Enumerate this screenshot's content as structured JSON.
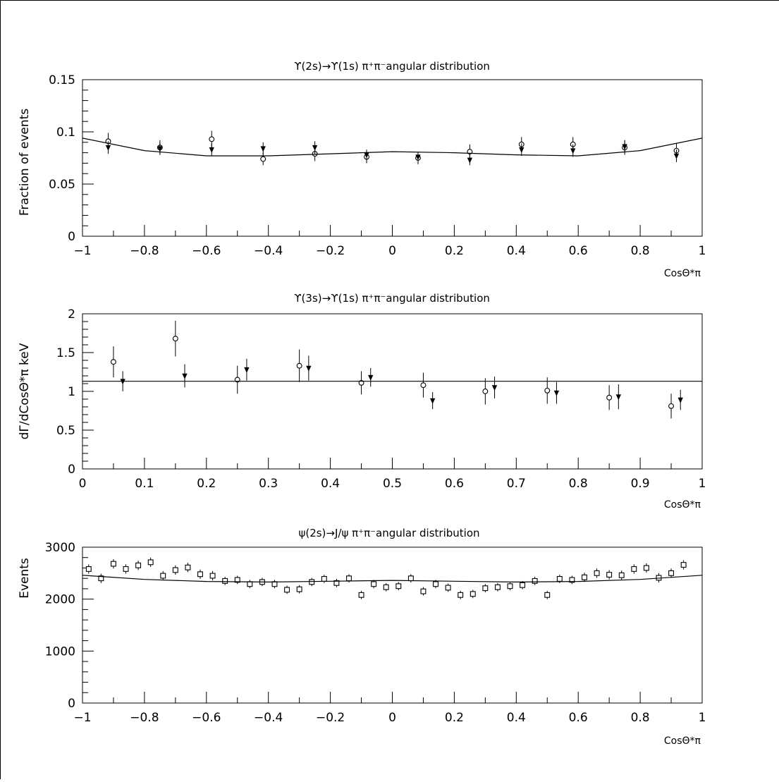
{
  "chart_data": [
    {
      "type": "scatter",
      "title": "ϒ(2s)→ϒ(1s) π⁺π⁻angular distribution",
      "xlabel": "CosΘ*π",
      "ylabel": "Fraction of events",
      "xlim": [
        -1,
        1
      ],
      "ylim": [
        0,
        0.15
      ],
      "xticks": [
        "−1",
        "−0.8",
        "−0.6",
        "−0.4",
        "−0.2",
        "0",
        "0.2",
        "0.4",
        "0.6",
        "0.8",
        "1"
      ],
      "yticks": [
        "0",
        "0.05",
        "0.1",
        "0.15"
      ],
      "grid": false,
      "series": [
        {
          "marker": "open-circle",
          "x": [
            -0.917,
            -0.75,
            -0.583,
            -0.417,
            -0.25,
            -0.083,
            0.083,
            0.25,
            0.417,
            0.583,
            0.75,
            0.917
          ],
          "y": [
            0.091,
            0.085,
            0.093,
            0.074,
            0.079,
            0.076,
            0.075,
            0.081,
            0.088,
            0.088,
            0.085,
            0.082
          ],
          "err": [
            0.008,
            0.007,
            0.008,
            0.006,
            0.007,
            0.006,
            0.006,
            0.007,
            0.007,
            0.007,
            0.007,
            0.007
          ]
        },
        {
          "marker": "filled-triangle",
          "x": [
            -0.917,
            -0.75,
            -0.583,
            -0.417,
            -0.25,
            -0.083,
            0.083,
            0.25,
            0.417,
            0.583,
            0.75,
            0.917
          ],
          "y": [
            0.085,
            0.084,
            0.083,
            0.084,
            0.085,
            0.078,
            0.076,
            0.073,
            0.083,
            0.082,
            0.086,
            0.077
          ],
          "err": [
            0.006,
            0.006,
            0.006,
            0.006,
            0.006,
            0.005,
            0.005,
            0.005,
            0.006,
            0.006,
            0.006,
            0.006
          ]
        },
        {
          "marker": "line",
          "x": [
            -1,
            -0.8,
            -0.6,
            -0.4,
            -0.2,
            0,
            0.2,
            0.4,
            0.6,
            0.8,
            1
          ],
          "y": [
            0.094,
            0.082,
            0.077,
            0.077,
            0.079,
            0.081,
            0.08,
            0.078,
            0.077,
            0.082,
            0.094
          ]
        }
      ]
    },
    {
      "type": "scatter",
      "title": "ϒ(3s)→ϒ(1s) π⁺π⁻angular distribution",
      "xlabel": "CosΘ*π",
      "ylabel": "dΓ/dCosΘ*π  keV",
      "xlim": [
        0,
        1
      ],
      "ylim": [
        0,
        2
      ],
      "xticks": [
        "0",
        "0.1",
        "0.2",
        "0.3",
        "0.4",
        "0.5",
        "0.6",
        "0.7",
        "0.8",
        "0.9",
        "1"
      ],
      "yticks": [
        "0",
        "0.5",
        "1",
        "1.5",
        "2"
      ],
      "grid": false,
      "series": [
        {
          "marker": "open-circle",
          "x": [
            0.05,
            0.15,
            0.25,
            0.35,
            0.45,
            0.55,
            0.65,
            0.75,
            0.85,
            0.95
          ],
          "y": [
            1.38,
            1.68,
            1.15,
            1.33,
            1.11,
            1.08,
            1.0,
            1.01,
            0.92,
            0.81
          ],
          "err": [
            0.2,
            0.23,
            0.18,
            0.21,
            0.15,
            0.16,
            0.17,
            0.17,
            0.16,
            0.16
          ]
        },
        {
          "marker": "filled-triangle",
          "x": [
            0.065,
            0.165,
            0.265,
            0.365,
            0.465,
            0.565,
            0.665,
            0.765,
            0.865,
            0.965
          ],
          "y": [
            1.13,
            1.2,
            1.28,
            1.3,
            1.18,
            0.88,
            1.05,
            0.98,
            0.93,
            0.89
          ],
          "err": [
            0.13,
            0.15,
            0.14,
            0.16,
            0.12,
            0.11,
            0.14,
            0.14,
            0.16,
            0.13
          ]
        },
        {
          "marker": "line",
          "x": [
            0,
            1
          ],
          "y": [
            1.13,
            1.13
          ]
        }
      ]
    },
    {
      "type": "scatter",
      "title": "ψ(2s)→J/ψ π⁺π⁻angular distribution",
      "xlabel": "CosΘ*π",
      "ylabel": "Events",
      "xlim": [
        -1,
        1
      ],
      "ylim": [
        0,
        3000
      ],
      "xticks": [
        "−1",
        "−0.8",
        "−0.6",
        "−0.4",
        "−0.2",
        "0",
        "0.2",
        "0.4",
        "0.6",
        "0.8",
        "1"
      ],
      "yticks": [
        "0",
        "1000",
        "2000",
        "3000"
      ],
      "grid": false,
      "series": [
        {
          "marker": "open-square",
          "x": [
            -0.98,
            -0.94,
            -0.9,
            -0.86,
            -0.82,
            -0.78,
            -0.74,
            -0.7,
            -0.66,
            -0.62,
            -0.58,
            -0.54,
            -0.5,
            -0.46,
            -0.42,
            -0.38,
            -0.34,
            -0.3,
            -0.26,
            -0.22,
            -0.18,
            -0.14,
            -0.1,
            -0.06,
            -0.02,
            0.02,
            0.06,
            0.1,
            0.14,
            0.18,
            0.22,
            0.26,
            0.3,
            0.34,
            0.38,
            0.42,
            0.46,
            0.5,
            0.54,
            0.58,
            0.62,
            0.66,
            0.7,
            0.74,
            0.78,
            0.82,
            0.86,
            0.9,
            0.94
          ],
          "y": [
            2580,
            2400,
            2680,
            2580,
            2650,
            2710,
            2450,
            2560,
            2610,
            2480,
            2450,
            2350,
            2370,
            2290,
            2330,
            2290,
            2180,
            2190,
            2330,
            2390,
            2310,
            2400,
            2080,
            2290,
            2230,
            2250,
            2400,
            2150,
            2290,
            2220,
            2080,
            2100,
            2210,
            2230,
            2250,
            2270,
            2350,
            2080,
            2390,
            2370,
            2420,
            2500,
            2470,
            2460,
            2580,
            2600,
            2410,
            2500,
            2660
          ],
          "err": [
            90,
            90,
            90,
            90,
            90,
            90,
            90,
            90,
            90,
            90,
            90,
            80,
            80,
            80,
            80,
            80,
            80,
            80,
            80,
            80,
            80,
            80,
            80,
            80,
            80,
            80,
            80,
            80,
            80,
            80,
            80,
            80,
            80,
            80,
            80,
            80,
            80,
            80,
            80,
            80,
            90,
            90,
            90,
            90,
            90,
            90,
            90,
            90,
            90
          ]
        },
        {
          "marker": "line",
          "x": [
            -1,
            -0.8,
            -0.6,
            -0.4,
            -0.2,
            0,
            0.2,
            0.4,
            0.6,
            0.8,
            1
          ],
          "y": [
            2460,
            2380,
            2340,
            2330,
            2345,
            2360,
            2345,
            2330,
            2340,
            2380,
            2460
          ]
        }
      ]
    }
  ]
}
